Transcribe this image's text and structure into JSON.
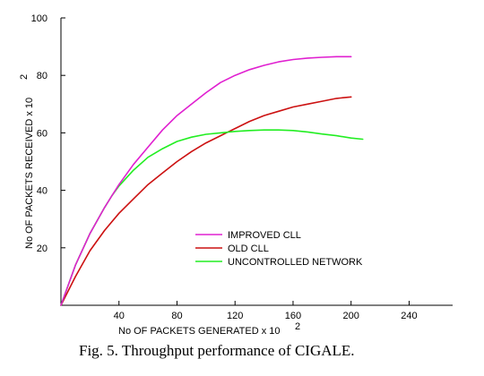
{
  "chart_data": {
    "type": "line",
    "xlabel": "No OF PACKETS GENERATED x 10",
    "xlabel_exp": "2",
    "ylabel": "No OF PACKETS RECEIVED x 10",
    "ylabel_exp": "2",
    "xlim": [
      0,
      270
    ],
    "ylim": [
      0,
      100
    ],
    "x_ticks": [
      40,
      80,
      120,
      160,
      200,
      240
    ],
    "y_ticks": [
      20,
      40,
      60,
      80,
      100
    ],
    "grid": false,
    "legend_position": "center",
    "series": [
      {
        "name": "IMPROVED CLL",
        "color": "#e020d0",
        "x": [
          0,
          10,
          20,
          30,
          35,
          40,
          50,
          60,
          70,
          80,
          90,
          100,
          110,
          120,
          130,
          140,
          150,
          160,
          170,
          180,
          190,
          200
        ],
        "y": [
          0,
          14,
          25,
          34,
          38,
          42,
          49,
          55,
          61,
          66,
          70,
          74,
          77.5,
          80,
          82,
          83.5,
          84.7,
          85.5,
          86,
          86.3,
          86.5,
          86.5
        ]
      },
      {
        "name": "OLD CLL",
        "color": "#cc1111",
        "x": [
          0,
          10,
          20,
          30,
          40,
          50,
          60,
          70,
          80,
          90,
          100,
          110,
          120,
          130,
          140,
          150,
          160,
          170,
          180,
          190,
          200
        ],
        "y": [
          0,
          10,
          19,
          26,
          32,
          37,
          42,
          46,
          50,
          53.5,
          56.5,
          59,
          61.5,
          64,
          66,
          67.5,
          69,
          70,
          71,
          72,
          72.5
        ]
      },
      {
        "name": "UNCONTROLLED NETWORK",
        "color": "#22ee22",
        "x": [
          0,
          10,
          20,
          30,
          35,
          40,
          50,
          60,
          70,
          80,
          90,
          100,
          110,
          120,
          130,
          140,
          150,
          160,
          170,
          180,
          190,
          200,
          208
        ],
        "y": [
          0,
          14,
          25,
          34,
          38,
          41.5,
          47,
          51.5,
          54.5,
          57,
          58.5,
          59.5,
          60,
          60.5,
          60.8,
          61,
          61,
          60.8,
          60.3,
          59.6,
          59,
          58.2,
          57.8
        ]
      }
    ]
  },
  "caption": "Fig. 5.  Throughput performance of CIGALE."
}
